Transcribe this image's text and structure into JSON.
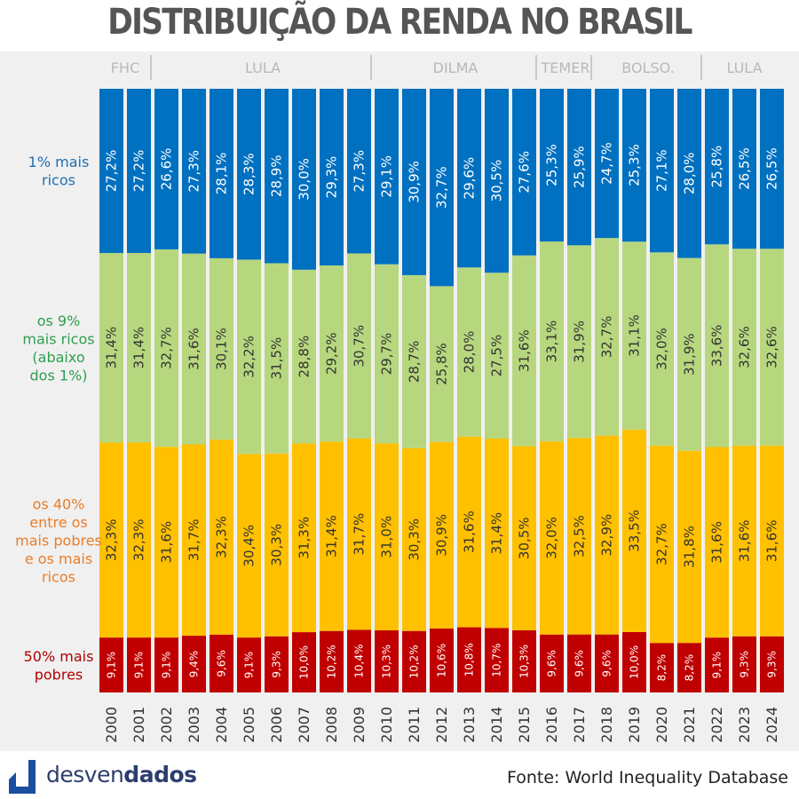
{
  "title": "DISTRIBUIÇÃO DA RENDA NO BRASIL",
  "brand": {
    "prefix": "desven",
    "suffix": "dados"
  },
  "source": "Fonte: World Inequality Database",
  "colors": {
    "top1": "#0070c0",
    "next9": "#b7d77f",
    "middle40": "#ffc000",
    "bottom50": "#c00000",
    "label_top1": "#1f6fb5",
    "label_next9": "#2e9e4e",
    "label_middle40": "#e87d2a",
    "label_bottom50": "#b00000",
    "period_text": "#b8b8b8",
    "logo": "#1a4fa0"
  },
  "chart_data": {
    "type": "bar",
    "stacked": true,
    "percent": true,
    "categories": [
      "2000",
      "2001",
      "2002",
      "2003",
      "2004",
      "2005",
      "2006",
      "2007",
      "2008",
      "2009",
      "2010",
      "2011",
      "2012",
      "2013",
      "2014",
      "2015",
      "2016",
      "2017",
      "2018",
      "2019",
      "2020",
      "2021",
      "2022",
      "2023",
      "2024"
    ],
    "periods": [
      {
        "name": "FHC",
        "start": "2000",
        "end": "2001"
      },
      {
        "name": "LULA",
        "start": "2002",
        "end": "2009"
      },
      {
        "name": "DILMA",
        "start": "2010",
        "end": "2015"
      },
      {
        "name": "TEMER",
        "start": "2016",
        "end": "2017"
      },
      {
        "name": "BOLSO.",
        "start": "2018",
        "end": "2021"
      },
      {
        "name": "LULA",
        "start": "2022",
        "end": "2024"
      }
    ],
    "series": [
      {
        "key": "bottom50",
        "name": "50% mais pobres",
        "values": [
          9.1,
          9.1,
          9.1,
          9.4,
          9.6,
          9.1,
          9.3,
          10.0,
          10.2,
          10.4,
          10.3,
          10.2,
          10.6,
          10.8,
          10.7,
          10.3,
          9.6,
          9.6,
          9.6,
          10.0,
          8.2,
          8.2,
          9.1,
          9.3,
          9.3
        ],
        "labels": [
          "9,1%",
          "9,1%",
          "9,1%",
          "9,4%",
          "9,6%",
          "9,1%",
          "9,3%",
          "10,0%",
          "10,2%",
          "10,4%",
          "10,3%",
          "10,2%",
          "10,6%",
          "10,8%",
          "10,7%",
          "10,3%",
          "9,6%",
          "9,6%",
          "9,6%",
          "10,0%",
          "8,2%",
          "8,2%",
          "9,1%",
          "9,3%",
          "9,3%"
        ]
      },
      {
        "key": "middle40",
        "name": "os 40% entre os mais pobres e os mais ricos",
        "values": [
          32.3,
          32.3,
          31.6,
          31.7,
          32.3,
          30.4,
          30.3,
          31.3,
          31.4,
          31.7,
          31.0,
          30.3,
          30.9,
          31.6,
          31.4,
          30.5,
          32.0,
          32.5,
          32.9,
          33.5,
          32.7,
          31.8,
          31.6,
          31.6,
          31.6
        ],
        "labels": [
          "32,3%",
          "32,3%",
          "31,6%",
          "31,7%",
          "32,3%",
          "30,4%",
          "30,3%",
          "31,3%",
          "31,4%",
          "31,7%",
          "31,0%",
          "30,3%",
          "30,9%",
          "31,6%",
          "31,4%",
          "30,5%",
          "32,0%",
          "32,5%",
          "32,9%",
          "33,5%",
          "32,7%",
          "31,8%",
          "31,6%",
          "31,6%",
          "31,6%"
        ]
      },
      {
        "key": "next9",
        "name": "os 9% mais ricos (abaixo dos 1%)",
        "values": [
          31.4,
          31.4,
          32.7,
          31.6,
          30.1,
          32.2,
          31.5,
          28.8,
          29.2,
          30.7,
          29.7,
          28.7,
          25.8,
          28.0,
          27.5,
          31.6,
          33.1,
          31.9,
          32.7,
          31.1,
          32.0,
          31.9,
          33.6,
          32.6,
          32.6
        ],
        "labels": [
          "31,4%",
          "31,4%",
          "32,7%",
          "31,6%",
          "30,1%",
          "32,2%",
          "31,5%",
          "28,8%",
          "29,2%",
          "30,7%",
          "29,7%",
          "28,7%",
          "25,8%",
          "28,0%",
          "27,5%",
          "31,6%",
          "33,1%",
          "31,9%",
          "32,7%",
          "31,1%",
          "32,0%",
          "31,9%",
          "33,6%",
          "32,6%",
          "32,6%"
        ]
      },
      {
        "key": "top1",
        "name": "1% mais ricos",
        "values": [
          27.2,
          27.2,
          26.6,
          27.3,
          28.1,
          28.3,
          28.9,
          30.0,
          29.3,
          27.3,
          29.1,
          30.9,
          32.7,
          29.6,
          30.5,
          27.6,
          25.3,
          25.9,
          24.7,
          25.3,
          27.1,
          28.0,
          25.8,
          26.5,
          26.5
        ],
        "labels": [
          "27,2%",
          "27,2%",
          "26,6%",
          "27,3%",
          "28,1%",
          "28,3%",
          "28,9%",
          "30,0%",
          "29,3%",
          "27,3%",
          "29,1%",
          "30,9%",
          "32,7%",
          "29,6%",
          "30,5%",
          "27,6%",
          "25,3%",
          "25,9%",
          "24,7%",
          "25,3%",
          "27,1%",
          "28,0%",
          "25,8%",
          "26,5%",
          "26,5%"
        ]
      }
    ],
    "row_labels": [
      {
        "key": "top1",
        "lines": [
          "1% mais",
          "ricos"
        ]
      },
      {
        "key": "next9",
        "lines": [
          "os 9%",
          "mais ricos",
          "(abaixo",
          "dos 1%)"
        ]
      },
      {
        "key": "middle40",
        "lines": [
          "os 40%",
          "entre os",
          "mais pobres",
          "e os mais",
          "ricos"
        ]
      },
      {
        "key": "bottom50",
        "lines": [
          "50% mais",
          "pobres"
        ]
      }
    ]
  }
}
